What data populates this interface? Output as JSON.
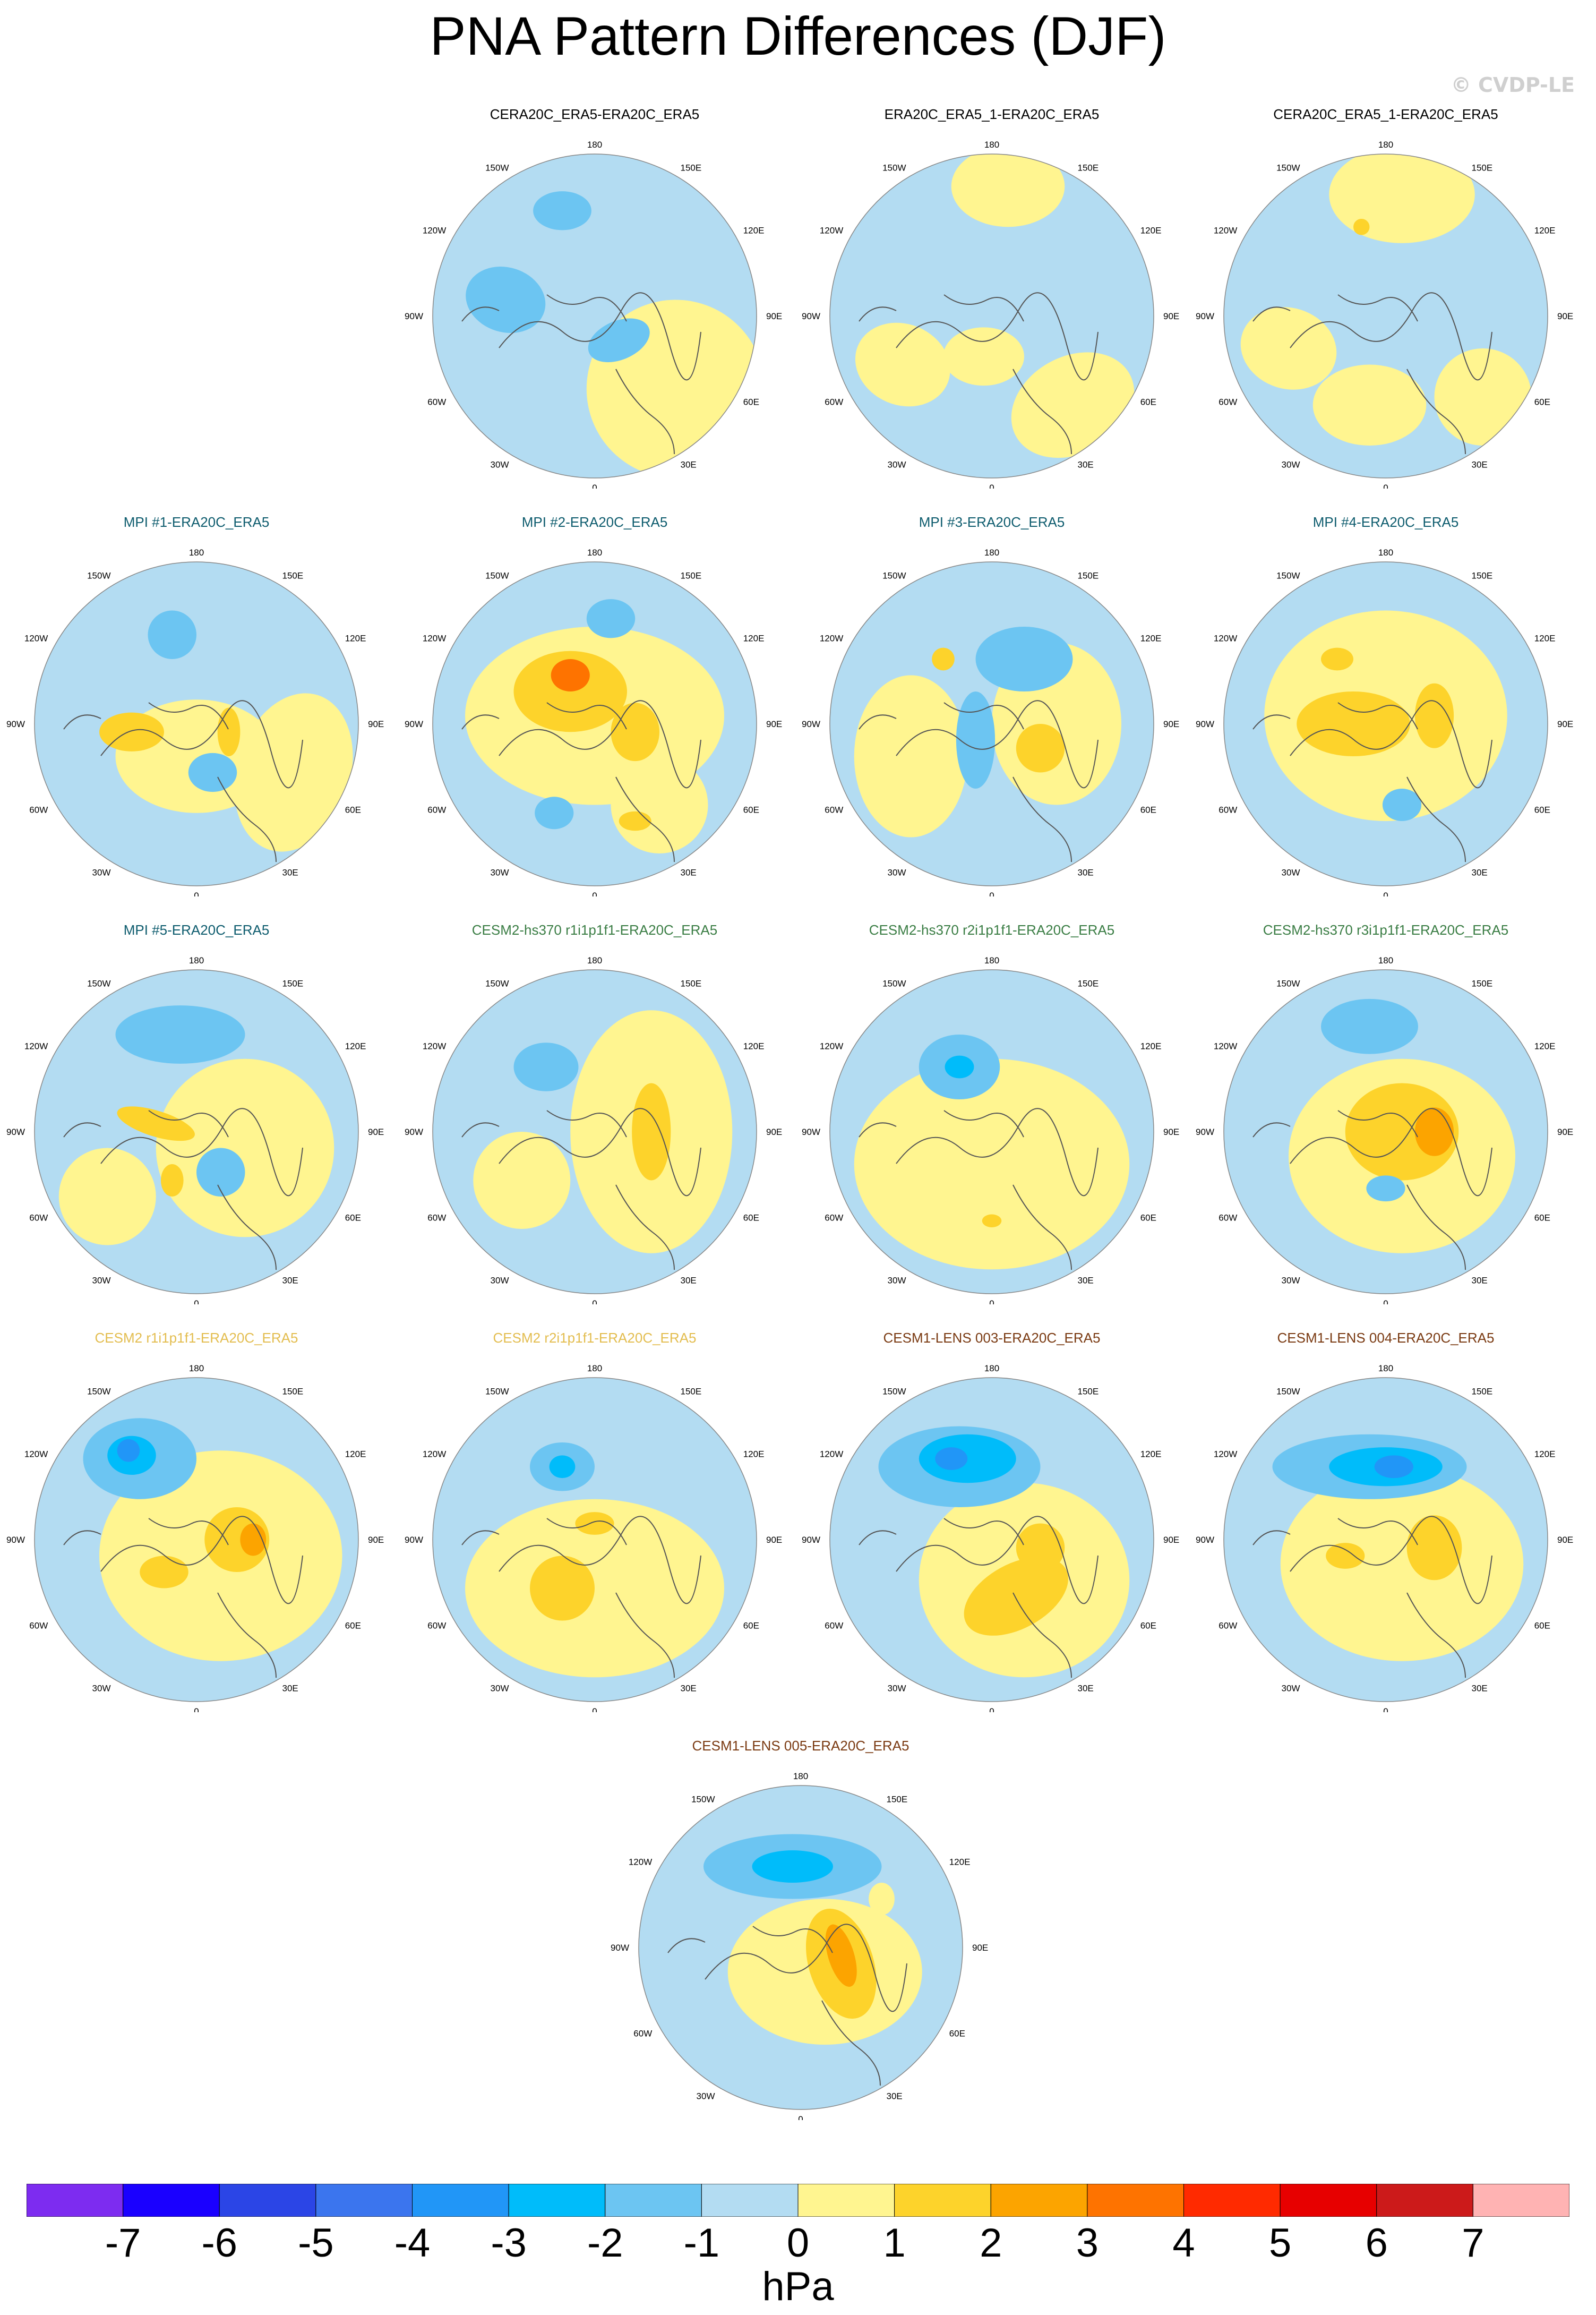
{
  "title": "PNA Pattern Differences (DJF)",
  "watermark": "© CVDP-LE",
  "colors": {
    "ocean_bg": "#b3dcf2",
    "coast": "#555555"
  },
  "longitude_labels": [
    "180",
    "150E",
    "120E",
    "90E",
    "60E",
    "30E",
    "0",
    "30W",
    "60W",
    "90W",
    "120W",
    "150W"
  ],
  "panels": [
    {
      "title": "CERA20C_ERA5-ERA20C_ERA5",
      "title_color": "#000000",
      "blobs": [
        [
          "y",
          0.5,
          0.45,
          0.55,
          0.55,
          0
        ],
        [
          "b",
          -0.55,
          -0.1,
          0.25,
          0.2,
          0.3
        ],
        [
          "b",
          0.15,
          0.15,
          0.2,
          0.12,
          -0.4
        ],
        [
          "b",
          -0.2,
          -0.65,
          0.18,
          0.12,
          0
        ]
      ]
    },
    {
      "title": "ERA20C_ERA5_1-ERA20C_ERA5",
      "title_color": "#000000",
      "blobs": [
        [
          "y",
          0.1,
          -0.8,
          0.35,
          0.25,
          0
        ],
        [
          "y",
          -0.55,
          0.3,
          0.3,
          0.25,
          0.4
        ],
        [
          "y",
          0.5,
          0.55,
          0.4,
          0.3,
          -0.5
        ],
        [
          "y",
          -0.05,
          0.25,
          0.25,
          0.18,
          0
        ]
      ]
    },
    {
      "title": "CERA20C_ERA5_1-ERA20C_ERA5",
      "title_color": "#000000",
      "blobs": [
        [
          "y",
          0.1,
          -0.75,
          0.45,
          0.3,
          0
        ],
        [
          "y",
          -0.6,
          0.2,
          0.3,
          0.25,
          0.3
        ],
        [
          "y",
          0.6,
          0.5,
          0.3,
          0.3,
          -0.4
        ],
        [
          "y",
          -0.1,
          0.55,
          0.35,
          0.25,
          0
        ],
        [
          "o",
          -0.15,
          -0.55,
          0.05,
          0.05,
          0
        ]
      ]
    },
    {
      "title": "MPI #1-ERA20C_ERA5",
      "title_color": "#0e5c6e",
      "blobs": [
        [
          "y",
          0.0,
          0.2,
          0.5,
          0.35,
          0
        ],
        [
          "y",
          0.6,
          0.3,
          0.35,
          0.5,
          0.3
        ],
        [
          "o",
          -0.4,
          0.05,
          0.2,
          0.12,
          0
        ],
        [
          "o",
          0.2,
          0.05,
          0.07,
          0.15,
          0
        ],
        [
          "b",
          -0.15,
          -0.55,
          0.15,
          0.15,
          0
        ],
        [
          "b",
          0.1,
          0.3,
          0.15,
          0.12,
          0
        ]
      ]
    },
    {
      "title": "MPI #2-ERA20C_ERA5",
      "title_color": "#0e5c6e",
      "blobs": [
        [
          "y",
          0.0,
          -0.05,
          0.8,
          0.55,
          0
        ],
        [
          "y",
          0.4,
          0.5,
          0.3,
          0.3,
          0
        ],
        [
          "o",
          -0.15,
          -0.2,
          0.35,
          0.25,
          0
        ],
        [
          "o",
          0.25,
          0.05,
          0.15,
          0.18,
          0
        ],
        [
          "r",
          -0.15,
          -0.3,
          0.12,
          0.1,
          0
        ],
        [
          "b",
          0.1,
          -0.65,
          0.15,
          0.12,
          0
        ],
        [
          "b",
          -0.25,
          0.55,
          0.12,
          0.1,
          0
        ],
        [
          "o",
          0.25,
          0.6,
          0.1,
          0.06,
          0
        ]
      ]
    },
    {
      "title": "MPI #3-ERA20C_ERA5",
      "title_color": "#0e5c6e",
      "blobs": [
        [
          "y",
          -0.5,
          0.2,
          0.35,
          0.5,
          0
        ],
        [
          "y",
          0.4,
          0.0,
          0.4,
          0.5,
          0
        ],
        [
          "b",
          0.2,
          -0.4,
          0.3,
          0.2,
          0
        ],
        [
          "b",
          -0.1,
          0.1,
          0.12,
          0.3,
          0
        ],
        [
          "o",
          0.3,
          0.15,
          0.15,
          0.15,
          0
        ],
        [
          "o",
          -0.3,
          -0.4,
          0.07,
          0.07,
          0
        ]
      ]
    },
    {
      "title": "MPI #4-ERA20C_ERA5",
      "title_color": "#0e5c6e",
      "blobs": [
        [
          "y",
          0.0,
          -0.05,
          0.75,
          0.65,
          0
        ],
        [
          "o",
          -0.2,
          0.0,
          0.35,
          0.2,
          0
        ],
        [
          "o",
          0.3,
          -0.05,
          0.12,
          0.2,
          0
        ],
        [
          "o",
          -0.3,
          -0.4,
          0.1,
          0.07,
          0
        ],
        [
          "b",
          0.1,
          0.5,
          0.12,
          0.1,
          0
        ]
      ]
    },
    {
      "title": "MPI #5-ERA20C_ERA5",
      "title_color": "#0e5c6e",
      "blobs": [
        [
          "y",
          0.3,
          0.1,
          0.55,
          0.55,
          0
        ],
        [
          "y",
          -0.55,
          0.4,
          0.3,
          0.3,
          0
        ],
        [
          "b",
          -0.1,
          -0.6,
          0.4,
          0.18,
          0
        ],
        [
          "b",
          0.15,
          0.25,
          0.15,
          0.15,
          0
        ],
        [
          "o",
          -0.25,
          -0.05,
          0.25,
          0.08,
          0.3
        ],
        [
          "o",
          -0.15,
          0.3,
          0.07,
          0.1,
          0
        ]
      ]
    },
    {
      "title": "CESM2-hs370 r1i1p1f1-ERA20C_ERA5",
      "title_color": "#3a7d44",
      "blobs": [
        [
          "y",
          0.35,
          0.0,
          0.5,
          0.75,
          0
        ],
        [
          "y",
          -0.45,
          0.3,
          0.3,
          0.3,
          0
        ],
        [
          "b",
          -0.3,
          -0.4,
          0.2,
          0.15,
          0
        ],
        [
          "o",
          0.35,
          0.0,
          0.12,
          0.3,
          0
        ]
      ]
    },
    {
      "title": "CESM2-hs370 r2i1p1f1-ERA20C_ERA5",
      "title_color": "#3a7d44",
      "blobs": [
        [
          "y",
          0.0,
          0.2,
          0.85,
          0.65,
          0
        ],
        [
          "b",
          -0.2,
          -0.4,
          0.25,
          0.2,
          0
        ],
        [
          "b2",
          -0.2,
          -0.4,
          0.09,
          0.07,
          0
        ],
        [
          "o",
          0.0,
          0.55,
          0.06,
          0.04,
          0
        ]
      ]
    },
    {
      "title": "CESM2-hs370 r3i1p1f1-ERA20C_ERA5",
      "title_color": "#3a7d44",
      "blobs": [
        [
          "y",
          0.1,
          0.15,
          0.7,
          0.6,
          0
        ],
        [
          "b",
          -0.1,
          -0.65,
          0.3,
          0.17,
          0
        ],
        [
          "o",
          0.1,
          0.0,
          0.35,
          0.3,
          0
        ],
        [
          "o2",
          0.3,
          0.0,
          0.12,
          0.15,
          0
        ],
        [
          "b",
          0.0,
          0.35,
          0.12,
          0.08,
          0
        ]
      ]
    },
    {
      "title": "CESM2 r1i1p1f1-ERA20C_ERA5",
      "title_color": "#e3bd4f",
      "blobs": [
        [
          "y",
          0.15,
          0.1,
          0.75,
          0.65,
          0
        ],
        [
          "b",
          -0.35,
          -0.5,
          0.35,
          0.25,
          0
        ],
        [
          "b2",
          -0.4,
          -0.52,
          0.15,
          0.12,
          0
        ],
        [
          "b3",
          -0.42,
          -0.55,
          0.07,
          0.07,
          0
        ],
        [
          "o",
          0.25,
          0.0,
          0.2,
          0.2,
          0
        ],
        [
          "o2",
          0.35,
          0.0,
          0.08,
          0.1,
          0
        ],
        [
          "o",
          -0.2,
          0.2,
          0.15,
          0.1,
          0
        ]
      ]
    },
    {
      "title": "CESM2 r2i1p1f1-ERA20C_ERA5",
      "title_color": "#e3bd4f",
      "blobs": [
        [
          "y",
          0.0,
          0.3,
          0.8,
          0.55,
          0
        ],
        [
          "b",
          -0.2,
          -0.45,
          0.2,
          0.15,
          0
        ],
        [
          "b2",
          -0.2,
          -0.45,
          0.08,
          0.07,
          0
        ],
        [
          "o",
          -0.2,
          0.3,
          0.2,
          0.2,
          0
        ],
        [
          "o",
          0.0,
          -0.1,
          0.12,
          0.07,
          0
        ]
      ]
    },
    {
      "title": "CESM1-LENS 003-ERA20C_ERA5",
      "title_color": "#7a3a12",
      "blobs": [
        [
          "y",
          0.2,
          0.25,
          0.65,
          0.6,
          0
        ],
        [
          "b",
          -0.2,
          -0.45,
          0.5,
          0.25,
          0
        ],
        [
          "b2",
          -0.15,
          -0.5,
          0.3,
          0.15,
          0
        ],
        [
          "b3",
          -0.25,
          -0.5,
          0.1,
          0.07,
          0
        ],
        [
          "o",
          0.15,
          0.35,
          0.35,
          0.2,
          -0.5
        ],
        [
          "o",
          0.3,
          0.05,
          0.15,
          0.15,
          0
        ]
      ]
    },
    {
      "title": "CESM1-LENS 004-ERA20C_ERA5",
      "title_color": "#7a3a12",
      "blobs": [
        [
          "y",
          0.1,
          0.15,
          0.75,
          0.6,
          0
        ],
        [
          "b",
          -0.1,
          -0.45,
          0.6,
          0.2,
          0
        ],
        [
          "b2",
          0.0,
          -0.45,
          0.35,
          0.12,
          0
        ],
        [
          "b3",
          0.05,
          -0.45,
          0.12,
          0.07,
          0
        ],
        [
          "o",
          0.3,
          0.05,
          0.17,
          0.2,
          0
        ],
        [
          "o",
          -0.25,
          0.1,
          0.12,
          0.08,
          0
        ]
      ]
    },
    {
      "title": "CESM1-LENS 005-ERA20C_ERA5",
      "title_color": "#7a3a12",
      "blobs": [
        [
          "y",
          0.15,
          0.15,
          0.6,
          0.45,
          0
        ],
        [
          "b",
          -0.05,
          -0.5,
          0.55,
          0.2,
          0
        ],
        [
          "b2",
          -0.05,
          -0.5,
          0.25,
          0.1,
          0
        ],
        [
          "o",
          0.25,
          0.1,
          0.2,
          0.35,
          -0.3
        ],
        [
          "o2",
          0.25,
          0.05,
          0.08,
          0.2,
          -0.3
        ],
        [
          "y",
          0.5,
          -0.3,
          0.08,
          0.1,
          0
        ]
      ]
    }
  ],
  "colorbar": {
    "colors": [
      "#7d2cf0",
      "#1a00ff",
      "#2b45e6",
      "#3b75ee",
      "#2196f7",
      "#00bcfa",
      "#6cc5f2",
      "#b3dcf2",
      "#fff590",
      "#fdd32b",
      "#fca400",
      "#fe7300",
      "#ff2a00",
      "#e70000",
      "#cc1a1a",
      "#ffb3b3"
    ],
    "ticks": [
      "-7",
      "-6",
      "-5",
      "-4",
      "-3",
      "-2",
      "-1",
      "0",
      "1",
      "2",
      "3",
      "4",
      "5",
      "6",
      "7"
    ],
    "units": "hPa"
  },
  "fill_colors": {
    "y": "#fff590",
    "o": "#fdd32b",
    "o2": "#fca400",
    "r": "#fe7300",
    "b": "#6cc5f2",
    "b2": "#00bcfa",
    "b3": "#2196f7"
  }
}
